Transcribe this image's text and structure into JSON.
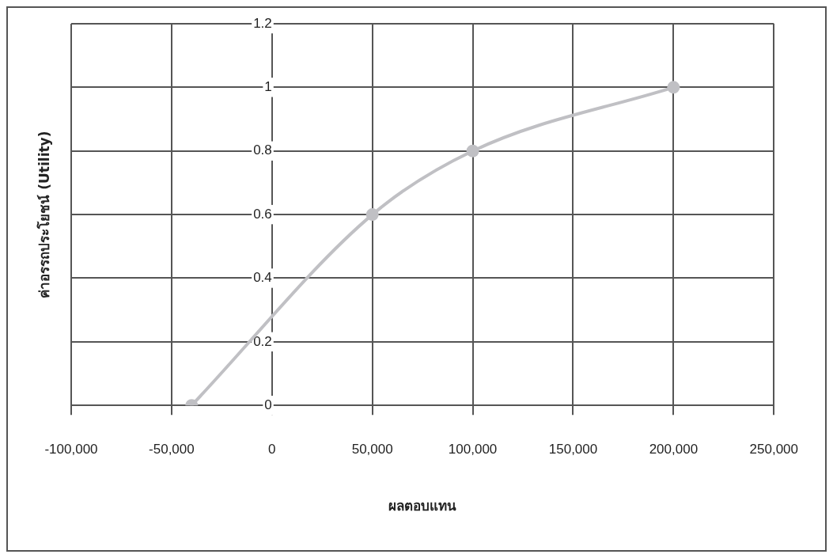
{
  "chart_data": {
    "type": "line",
    "xlabel": "ผลตอบแทน",
    "ylabel": "ค่าอรรถประโยชน์ (Utility)",
    "x": [
      -40000,
      50000,
      100000,
      200000
    ],
    "series": [
      {
        "color": "#c0c0c4",
        "values": [
          0,
          0.6,
          0.8,
          1
        ]
      }
    ],
    "xlim": [
      -100000,
      250000
    ],
    "xticks": [
      {
        "value": -100000,
        "label": "-100,000"
      },
      {
        "value": -50000,
        "label": "-50,000"
      },
      0,
      {
        "value": 50000,
        "label": "50,000"
      },
      {
        "value": 100000,
        "label": "100,000"
      },
      {
        "value": 150000,
        "label": "150,000"
      },
      {
        "value": 200000,
        "label": "200,000"
      },
      {
        "value": 250000,
        "label": "250,000"
      }
    ],
    "ylim": [
      0,
      1.2
    ],
    "yticks": [
      0,
      0.2,
      0.4,
      0.6,
      0.8,
      1,
      1.2
    ],
    "grid": true,
    "legend": false,
    "marker": "circle",
    "line_style": "solid"
  }
}
